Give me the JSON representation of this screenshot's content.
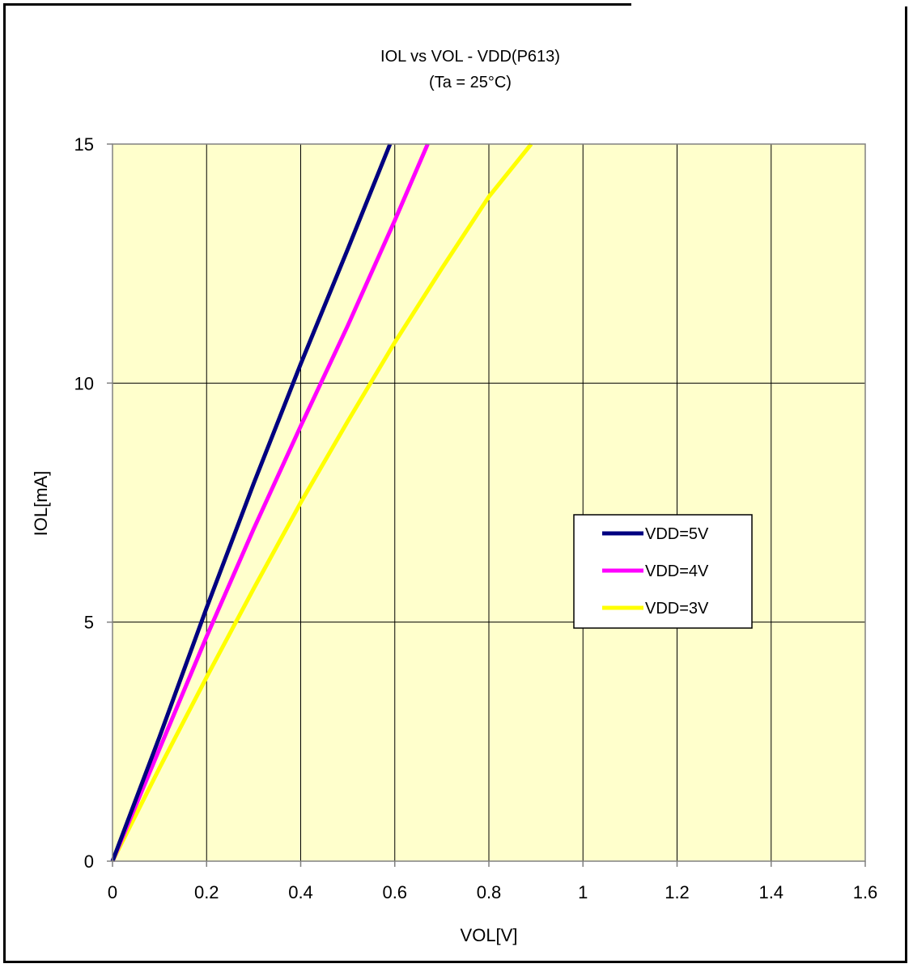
{
  "chart_data": {
    "type": "line",
    "title": "IOL vs VOL  - VDD(P613)",
    "subtitle": "(Ta =  25°C)",
    "xlabel": "VOL[V]",
    "ylabel": "IOL[mA]",
    "xlim": [
      0,
      1.6
    ],
    "ylim": [
      0,
      15
    ],
    "x_ticks": [
      0,
      0.2,
      0.4,
      0.6,
      0.8,
      1,
      1.2,
      1.4,
      1.6
    ],
    "x_tick_labels": [
      "0",
      "0.2",
      "0.4",
      "0.6",
      "0.8",
      "1",
      "1.2",
      "1.4",
      "1.6"
    ],
    "y_ticks": [
      0,
      5,
      10,
      15
    ],
    "y_tick_labels": [
      "0",
      "5",
      "10",
      "15"
    ],
    "grid": true,
    "plot_background": "#FFFFCC",
    "legend_placement": "right-middle",
    "series": [
      {
        "name": "VDD=5V",
        "color": "#000080",
        "x": [
          0,
          0.1,
          0.2,
          0.3,
          0.4,
          0.5,
          0.59
        ],
        "y": [
          0,
          2.6,
          5.3,
          7.9,
          10.4,
          12.8,
          15.0
        ]
      },
      {
        "name": "VDD=4V",
        "color": "#FF00FF",
        "x": [
          0,
          0.1,
          0.2,
          0.3,
          0.4,
          0.5,
          0.6,
          0.67
        ],
        "y": [
          0,
          2.35,
          4.7,
          6.95,
          9.1,
          11.2,
          13.4,
          15.0
        ]
      },
      {
        "name": "VDD=3V",
        "color": "#FFFF00",
        "x": [
          0,
          0.1,
          0.2,
          0.3,
          0.4,
          0.5,
          0.6,
          0.7,
          0.8,
          0.89
        ],
        "y": [
          0,
          1.95,
          3.85,
          5.7,
          7.5,
          9.2,
          10.85,
          12.4,
          13.9,
          15.0
        ]
      }
    ]
  }
}
